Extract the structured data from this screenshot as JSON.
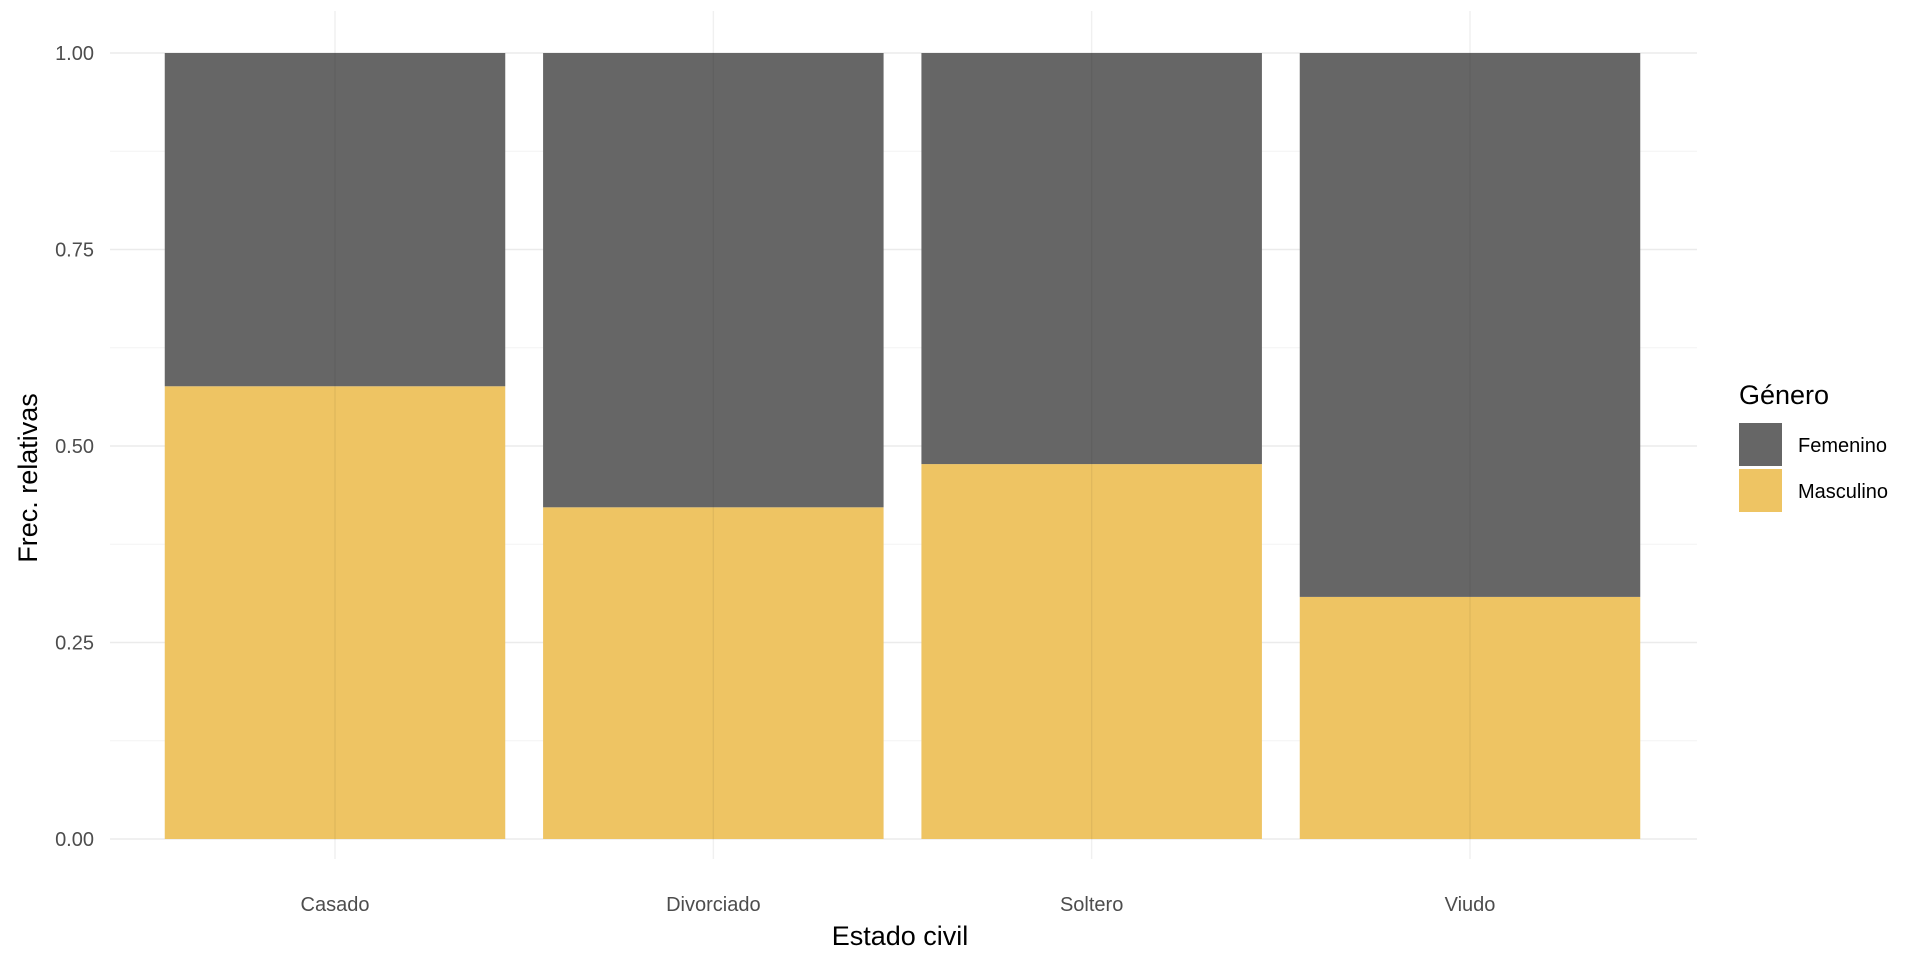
{
  "chart_data": {
    "type": "bar",
    "stacked": true,
    "categories": [
      "Casado",
      "Divorciado",
      "Soltero",
      "Viudo"
    ],
    "series": [
      {
        "name": "Femenino",
        "values": [
          0.424,
          0.578,
          0.523,
          0.692
        ],
        "color": "#666666"
      },
      {
        "name": "Masculino",
        "values": [
          0.576,
          0.422,
          0.477,
          0.308
        ],
        "color": "#EEC463"
      }
    ],
    "xlabel": "Estado civil",
    "ylabel": "Frec. relativas",
    "ylim": [
      0,
      1
    ],
    "yticks": [
      "0.00",
      "0.25",
      "0.50",
      "0.75",
      "1.00"
    ],
    "grid": true,
    "legend": {
      "title": "Género",
      "placement": "right"
    }
  }
}
